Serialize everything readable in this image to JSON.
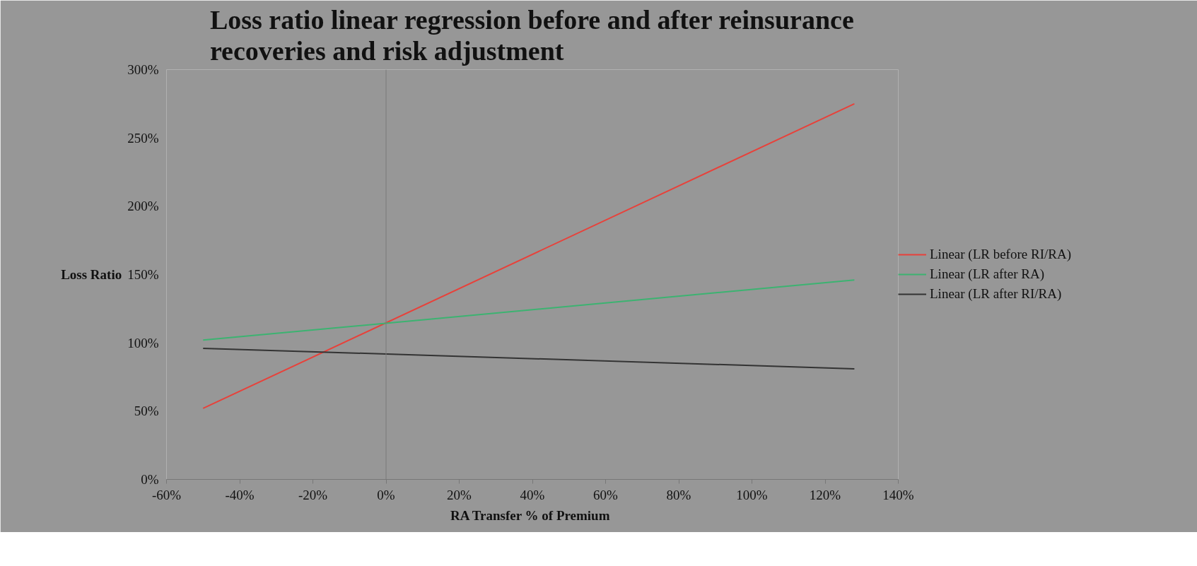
{
  "chart_data": {
    "type": "line",
    "title": "Loss ratio linear regression before and after reinsurance\nrecoveries and risk adjustment",
    "xlabel": "RA Transfer  % of Premium",
    "ylabel": "Loss Ratio",
    "x": [
      -50,
      128
    ],
    "series": [
      {
        "name": "Linear (LR before RI/RA)",
        "color": "#e8413a",
        "values": [
          52,
          275
        ]
      },
      {
        "name": "Linear (LR after RA)",
        "color": "#3cb371",
        "values": [
          102,
          146
        ]
      },
      {
        "name": "Linear (LR after RI/RA)",
        "color": "#333333",
        "values": [
          96,
          81
        ]
      }
    ],
    "xlim": [
      -60,
      140
    ],
    "ylim": [
      0,
      300
    ],
    "xticks": [
      {
        "value": -60,
        "label": "-60%"
      },
      {
        "value": -40,
        "label": "-40%"
      },
      {
        "value": -20,
        "label": "-20%"
      },
      {
        "value": 0,
        "label": "0%"
      },
      {
        "value": 20,
        "label": "20%"
      },
      {
        "value": 40,
        "label": "40%"
      },
      {
        "value": 60,
        "label": "60%"
      },
      {
        "value": 80,
        "label": "80%"
      },
      {
        "value": 100,
        "label": "100%"
      },
      {
        "value": 120,
        "label": "120%"
      },
      {
        "value": 140,
        "label": "140%"
      }
    ],
    "yticks": [
      {
        "value": 0,
        "label": "0%"
      },
      {
        "value": 50,
        "label": "50%"
      },
      {
        "value": 100,
        "label": "100%"
      },
      {
        "value": 150,
        "label": "150%"
      },
      {
        "value": 200,
        "label": "200%"
      },
      {
        "value": 250,
        "label": "250%"
      },
      {
        "value": 300,
        "label": "300%"
      }
    ],
    "ref_lines": [
      {
        "axis": "x",
        "value": 0,
        "label": null,
        "color": "#7a7a7a"
      }
    ],
    "grid": false,
    "legend": "right",
    "marker": "none",
    "line_style": "solid"
  }
}
